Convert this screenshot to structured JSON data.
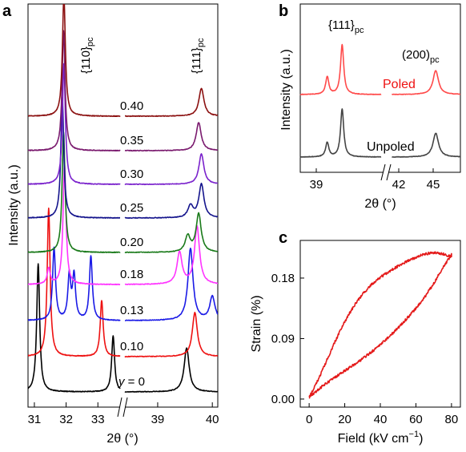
{
  "chart_data": [
    {
      "panel": "a",
      "type": "line",
      "xlabel": "2θ (°)",
      "ylabel": "Intensity (a.u.)",
      "x_break": [
        33.7,
        38.0
      ],
      "xlim": [
        30.6,
        40.1
      ],
      "xticks": [
        31,
        32,
        33,
        39,
        40
      ],
      "annotations": [
        "{110}",
        "pc",
        "{111}",
        "pc"
      ],
      "series": [
        {
          "name": "y = 0",
          "label_prefix": "y",
          "label_value": " = 0",
          "color": "#000000",
          "peaks": [
            [
              31.12,
              160
            ],
            [
              33.48,
              70
            ],
            [
              39.53,
              55
            ]
          ]
        },
        {
          "name": "0.10",
          "label_value": "0.10",
          "color": "#ee1111",
          "peaks": [
            [
              31.45,
              185
            ],
            [
              33.12,
              70
            ],
            [
              39.68,
              55
            ]
          ]
        },
        {
          "name": "0.13",
          "label_value": "0.13",
          "color": "#1a1ae6",
          "peaks": [
            [
              31.62,
              90
            ],
            [
              32.1,
              55
            ],
            [
              32.25,
              55
            ],
            [
              32.78,
              80
            ],
            [
              39.6,
              90
            ],
            [
              40.0,
              30
            ]
          ]
        },
        {
          "name": "0.18",
          "label_value": "0.18",
          "color": "#ff33ff",
          "peaks": [
            [
              31.45,
              20
            ],
            [
              31.95,
              150
            ],
            [
              39.4,
              40
            ],
            [
              39.72,
              72
            ]
          ]
        },
        {
          "name": "0.20",
          "label_value": "0.20",
          "color": "#1a7a1a",
          "peaks": [
            [
              31.92,
              150
            ],
            [
              39.55,
              20
            ],
            [
              39.75,
              48
            ]
          ]
        },
        {
          "name": "0.25",
          "label_value": "0.25",
          "color": "#14148c",
          "peaks": [
            [
              31.88,
              150
            ],
            [
              39.6,
              15
            ],
            [
              39.8,
              42
            ]
          ]
        },
        {
          "name": "0.30",
          "label_value": "0.30",
          "color": "#7a22cc",
          "peaks": [
            [
              31.93,
              150
            ],
            [
              39.8,
              38
            ]
          ]
        },
        {
          "name": "0.35",
          "label_value": "0.35",
          "color": "#7a1a6e",
          "peaks": [
            [
              31.92,
              150
            ],
            [
              39.75,
              35
            ]
          ]
        },
        {
          "name": "0.40",
          "label_value": "0.40",
          "color": "#8b1010",
          "peaks": [
            [
              31.93,
              150
            ],
            [
              39.8,
              35
            ]
          ]
        }
      ]
    },
    {
      "panel": "b",
      "type": "line",
      "xlabel": "2θ (°)",
      "ylabel": "Intensity (a.u.)",
      "x_break": [
        41.2,
        44.5
      ],
      "xlim": [
        38.6,
        45.8
      ],
      "xticks": [
        39,
        42,
        45
      ],
      "annotations": [
        "{111}",
        "pc",
        "(200)",
        "pc"
      ],
      "series": [
        {
          "name": "Unpoled",
          "color": "#444444",
          "peaks": [
            [
              39.45,
              18
            ],
            [
              39.92,
              60
            ],
            [
              45.35,
              30
            ]
          ]
        },
        {
          "name": "Poled",
          "color": "#ff4a4a",
          "peaks": [
            [
              39.45,
              22
            ],
            [
              39.92,
              62
            ],
            [
              45.35,
              30
            ]
          ]
        }
      ]
    },
    {
      "panel": "c",
      "type": "line",
      "xlabel": "Field (kV cm",
      "xlabel_sup": "−1",
      "xlabel_end": ")",
      "ylabel": "Strain (%)",
      "xlim": [
        -5,
        85
      ],
      "ylim": [
        -0.012,
        0.236
      ],
      "xticks": [
        0,
        20,
        40,
        60,
        80
      ],
      "yticks": [
        "0.00",
        "0.09",
        "0.18"
      ],
      "ytick_values": [
        0,
        0.09,
        0.18
      ],
      "color": "#e41a1a",
      "branch_up": [
        [
          0,
          0.003
        ],
        [
          5,
          0.014
        ],
        [
          10,
          0.024
        ],
        [
          15,
          0.033
        ],
        [
          20,
          0.042
        ],
        [
          25,
          0.051
        ],
        [
          30,
          0.06
        ],
        [
          35,
          0.07
        ],
        [
          40,
          0.081
        ],
        [
          45,
          0.093
        ],
        [
          50,
          0.106
        ],
        [
          55,
          0.12
        ],
        [
          60,
          0.135
        ],
        [
          65,
          0.152
        ],
        [
          70,
          0.172
        ],
        [
          75,
          0.195
        ],
        [
          80,
          0.215
        ]
      ],
      "branch_down": [
        [
          80,
          0.212
        ],
        [
          75,
          0.216
        ],
        [
          70,
          0.218
        ],
        [
          65,
          0.216
        ],
        [
          60,
          0.211
        ],
        [
          55,
          0.205
        ],
        [
          50,
          0.198
        ],
        [
          45,
          0.19
        ],
        [
          40,
          0.181
        ],
        [
          35,
          0.17
        ],
        [
          30,
          0.156
        ],
        [
          25,
          0.138
        ],
        [
          20,
          0.115
        ],
        [
          15,
          0.088
        ],
        [
          10,
          0.058
        ],
        [
          5,
          0.028
        ],
        [
          0,
          0.003
        ]
      ]
    }
  ],
  "panels": {
    "a": "a",
    "b": "b",
    "c": "c"
  }
}
